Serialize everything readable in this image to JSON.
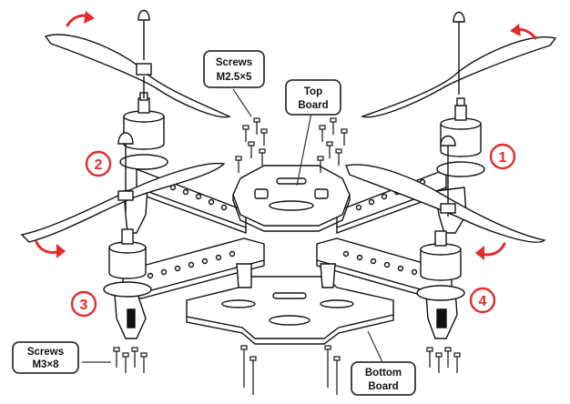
{
  "labels": {
    "screws_top": {
      "line1": "Screws",
      "line2": "M2.5×5"
    },
    "top_board": {
      "line1": "Top",
      "line2": "Board"
    },
    "screws_bottom": {
      "line1": "Screws",
      "line2": "M3×8"
    },
    "bottom_board": {
      "line1": "Bottom",
      "line2": "Board"
    }
  },
  "motor_numbers": [
    "1",
    "2",
    "3",
    "4"
  ],
  "colors": {
    "accent_red": "#e32a2a",
    "line": "#111111",
    "callout_border": "#333333"
  },
  "icons": {
    "rotation_arrows": [
      "rotation-arrow-cw-icon",
      "rotation-arrow-ccw-icon"
    ]
  }
}
